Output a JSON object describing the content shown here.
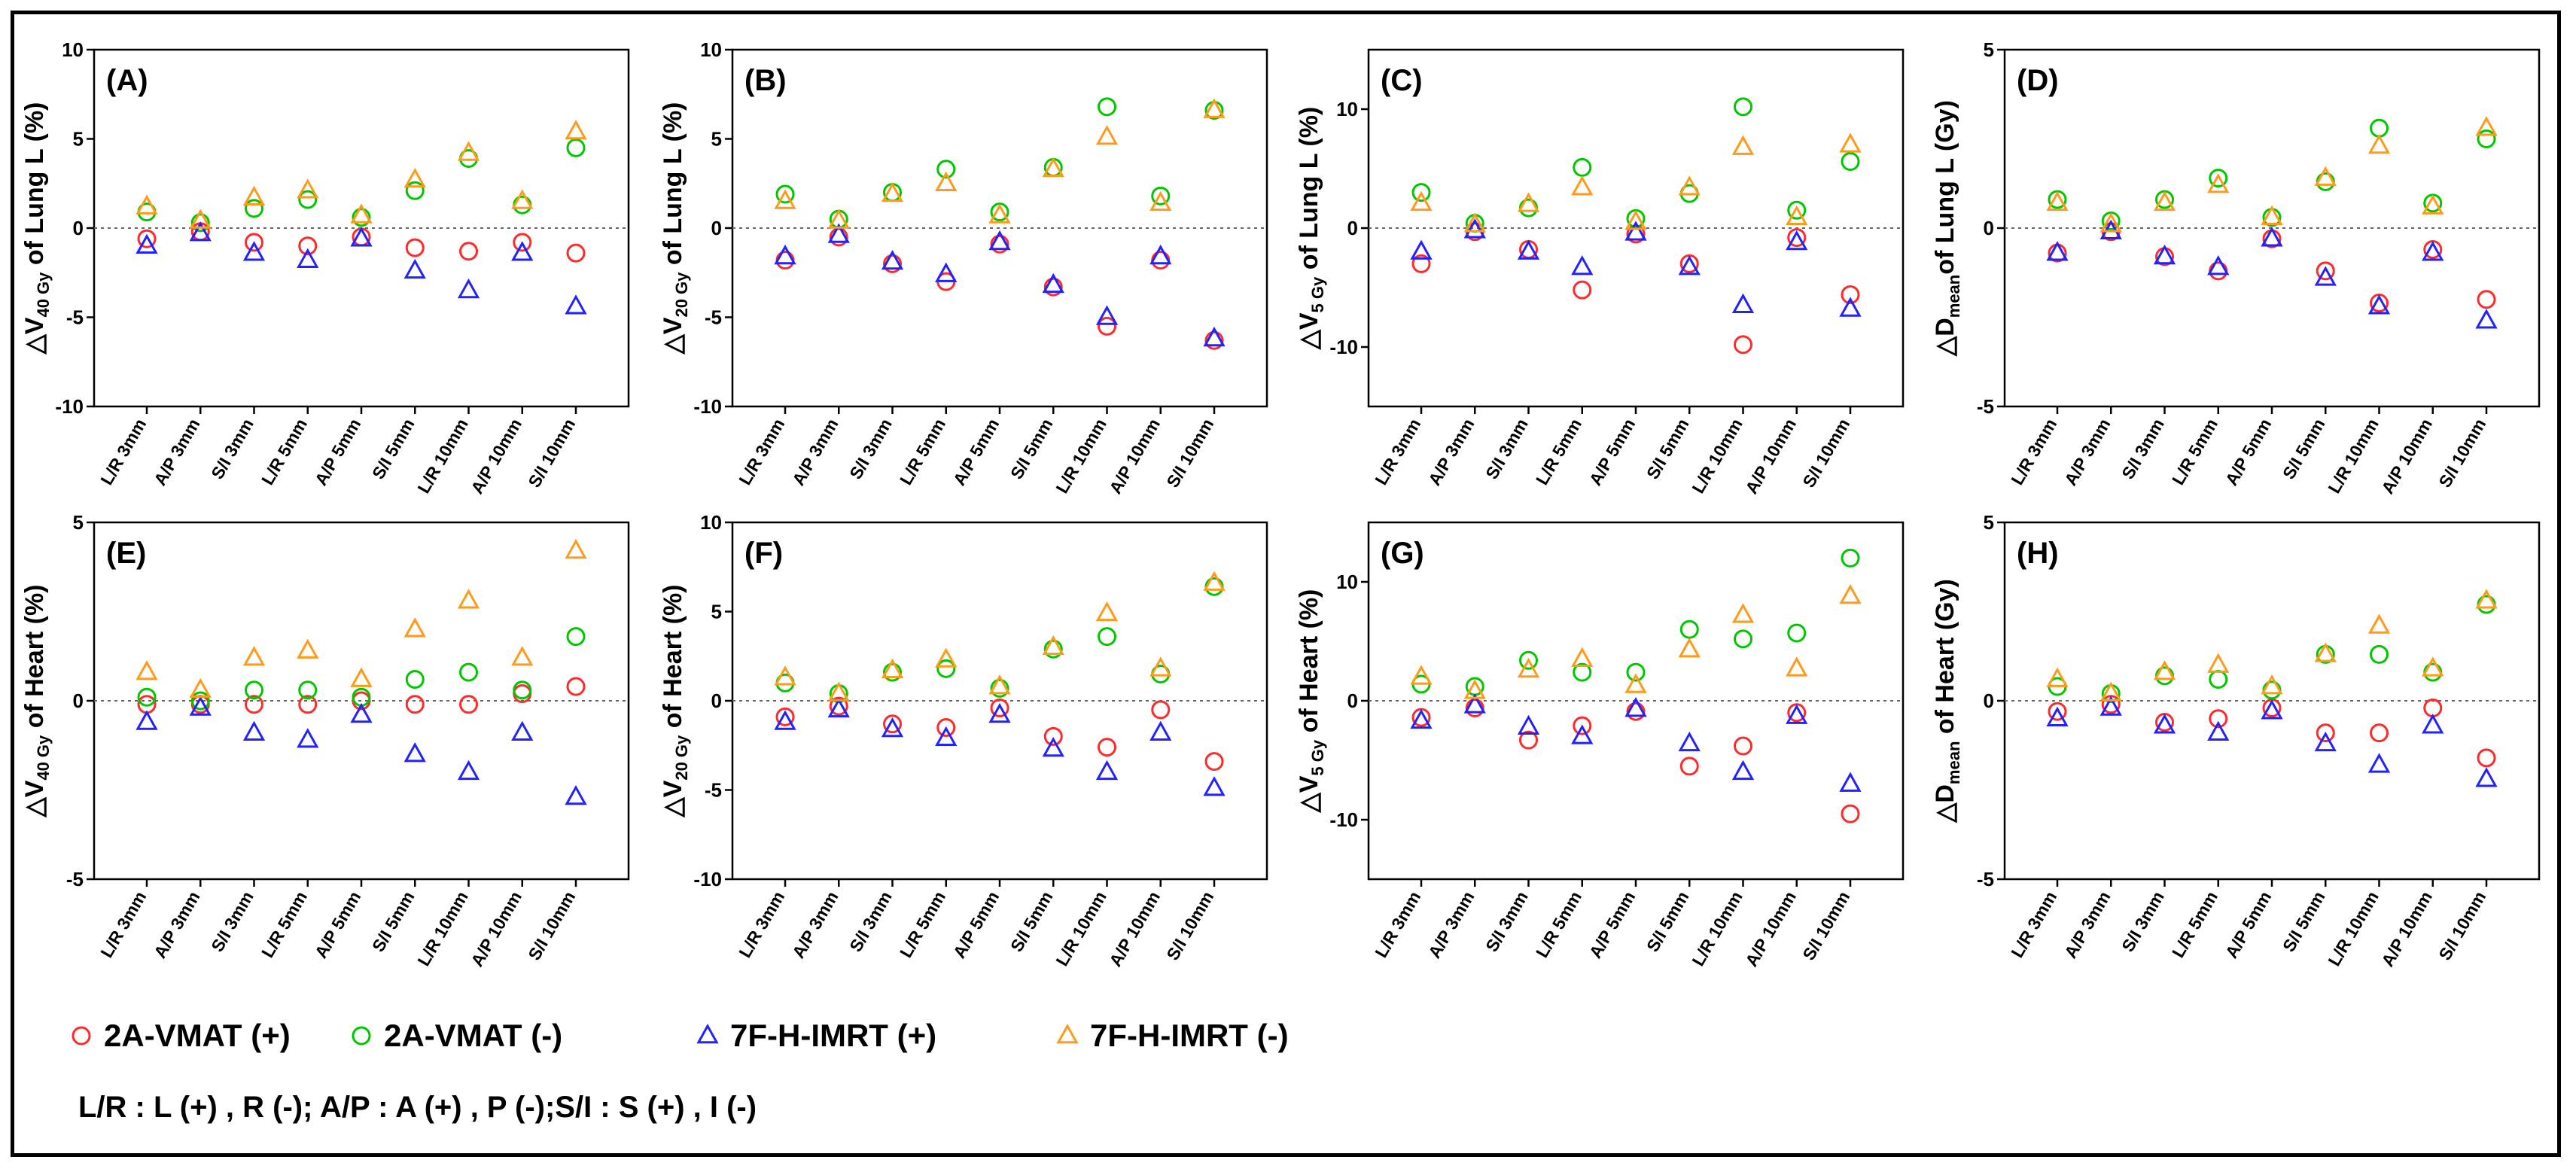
{
  "categories": [
    "L/R 3mm",
    "A/P 3mm",
    "S/I 3mm",
    "L/R 5mm",
    "A/P 5mm",
    "S/I 5mm",
    "L/R 10mm",
    "A/P 10mm",
    "S/I 10mm"
  ],
  "legend": [
    {
      "label": "2A-VMAT (+)",
      "marker": "circle",
      "color": "#ff2a2a"
    },
    {
      "label": "2A-VMAT (-)",
      "marker": "circle",
      "color": "#00c800"
    },
    {
      "label": "7F-H-IMRT (+)",
      "marker": "triangle",
      "color": "#2222ff"
    },
    {
      "label": "7F-H-IMRT (-)",
      "marker": "triangle",
      "color": "#ff9a1a"
    }
  ],
  "footnote": "L/R : L (+) , R (-); A/P : A (+) , P (-);S/I : S (+) , I (-)",
  "chart_data": [
    {
      "type": "scatter",
      "panel_label": "(A)",
      "ylabel": {
        "prefix": "△V",
        "sub": "40 Gy",
        "suffix": " of Lung L (%)"
      },
      "ylim": [
        -10,
        10
      ],
      "yticks": [
        -10,
        -5,
        0,
        5,
        10
      ],
      "zero_line": true,
      "categories": [
        "L/R 3mm",
        "A/P 3mm",
        "S/I 3mm",
        "L/R 5mm",
        "A/P 5mm",
        "S/I 5mm",
        "L/R 10mm",
        "A/P 10mm",
        "S/I 10mm"
      ],
      "series": [
        {
          "name": "2A-VMAT (+)",
          "values": [
            -0.6,
            -0.2,
            -0.8,
            -1.0,
            -0.5,
            -1.1,
            -1.3,
            -0.8,
            -1.4
          ]
        },
        {
          "name": "2A-VMAT (-)",
          "values": [
            0.9,
            0.3,
            1.1,
            1.6,
            0.6,
            2.1,
            3.9,
            1.3,
            4.5
          ]
        },
        {
          "name": "7F-H-IMRT (+)",
          "values": [
            -1.0,
            -0.3,
            -1.4,
            -1.8,
            -0.6,
            -2.4,
            -3.5,
            -1.4,
            -4.4
          ]
        },
        {
          "name": "7F-H-IMRT (-)",
          "values": [
            1.2,
            0.4,
            1.7,
            2.1,
            0.7,
            2.7,
            4.2,
            1.5,
            5.4
          ]
        }
      ]
    },
    {
      "type": "scatter",
      "panel_label": "(B)",
      "ylabel": {
        "prefix": "△V",
        "sub": "20 Gy",
        "suffix": " of Lung L (%)"
      },
      "ylim": [
        -10,
        10
      ],
      "yticks": [
        -10,
        -5,
        0,
        5,
        10
      ],
      "zero_line": true,
      "categories": [
        "L/R 3mm",
        "A/P 3mm",
        "S/I 3mm",
        "L/R 5mm",
        "A/P 5mm",
        "S/I 5mm",
        "L/R 10mm",
        "A/P 10mm",
        "S/I 10mm"
      ],
      "series": [
        {
          "name": "2A-VMAT (+)",
          "values": [
            -1.8,
            -0.5,
            -2.0,
            -3.0,
            -0.9,
            -3.3,
            -5.5,
            -1.8,
            -6.3
          ]
        },
        {
          "name": "2A-VMAT (-)",
          "values": [
            1.9,
            0.5,
            2.0,
            3.3,
            0.9,
            3.4,
            6.8,
            1.8,
            6.6
          ]
        },
        {
          "name": "7F-H-IMRT (+)",
          "values": [
            -1.6,
            -0.4,
            -1.9,
            -2.6,
            -0.8,
            -3.2,
            -5.0,
            -1.6,
            -6.2
          ]
        },
        {
          "name": "7F-H-IMRT (-)",
          "values": [
            1.5,
            0.4,
            1.9,
            2.5,
            0.7,
            3.3,
            5.1,
            1.4,
            6.6
          ]
        }
      ]
    },
    {
      "type": "scatter",
      "panel_label": "(C)",
      "ylabel": {
        "prefix": "△V",
        "sub": "5 Gy",
        "suffix": " of Lung L (%)"
      },
      "ylim": [
        -15,
        15
      ],
      "yticks": [
        -10,
        0,
        10
      ],
      "zero_line": true,
      "categories": [
        "L/R 3mm",
        "A/P 3mm",
        "S/I 3mm",
        "L/R 5mm",
        "A/P 5mm",
        "S/I 5mm",
        "L/R 10mm",
        "A/P 10mm",
        "S/I 10mm"
      ],
      "series": [
        {
          "name": "2A-VMAT (+)",
          "values": [
            -3.0,
            -0.3,
            -1.8,
            -5.2,
            -0.5,
            -3.0,
            -9.8,
            -0.8,
            -5.6
          ]
        },
        {
          "name": "2A-VMAT (-)",
          "values": [
            3.0,
            0.4,
            1.7,
            5.1,
            0.8,
            2.9,
            10.2,
            1.5,
            5.6
          ]
        },
        {
          "name": "7F-H-IMRT (+)",
          "values": [
            -2.0,
            -0.2,
            -2.0,
            -3.3,
            -0.4,
            -3.3,
            -6.5,
            -1.2,
            -6.8
          ]
        },
        {
          "name": "7F-H-IMRT (-)",
          "values": [
            2.1,
            0.3,
            2.0,
            3.4,
            0.5,
            3.4,
            6.8,
            0.9,
            7.0
          ]
        }
      ]
    },
    {
      "type": "scatter",
      "panel_label": "(D)",
      "ylabel": {
        "prefix": "△D",
        "sub": "mean",
        "suffix": "of Lung L (Gy)"
      },
      "ylim": [
        -5,
        5
      ],
      "yticks": [
        -5,
        0,
        5
      ],
      "zero_line": true,
      "categories": [
        "L/R 3mm",
        "A/P 3mm",
        "S/I 3mm",
        "L/R 5mm",
        "A/P 5mm",
        "S/I 5mm",
        "L/R 10mm",
        "A/P 10mm",
        "S/I 10mm"
      ],
      "series": [
        {
          "name": "2A-VMAT (+)",
          "values": [
            -0.7,
            -0.1,
            -0.8,
            -1.2,
            -0.3,
            -1.2,
            -2.1,
            -0.6,
            -2.0
          ]
        },
        {
          "name": "2A-VMAT (-)",
          "values": [
            0.8,
            0.2,
            0.8,
            1.4,
            0.3,
            1.3,
            2.8,
            0.7,
            2.5
          ]
        },
        {
          "name": "7F-H-IMRT (+)",
          "values": [
            -0.7,
            -0.1,
            -0.8,
            -1.1,
            -0.3,
            -1.4,
            -2.2,
            -0.7,
            -2.6
          ]
        },
        {
          "name": "7F-H-IMRT (-)",
          "values": [
            0.7,
            0.1,
            0.7,
            1.2,
            0.3,
            1.4,
            2.3,
            0.6,
            2.8
          ]
        }
      ]
    },
    {
      "type": "scatter",
      "panel_label": "(E)",
      "ylabel": {
        "prefix": "△V",
        "sub": "40 Gy",
        "suffix": " of Heart (%)"
      },
      "ylim": [
        -5,
        5
      ],
      "yticks": [
        -5,
        0,
        5
      ],
      "zero_line": true,
      "categories": [
        "L/R 3mm",
        "A/P 3mm",
        "S/I 3mm",
        "L/R 5mm",
        "A/P 5mm",
        "S/I 5mm",
        "L/R 10mm",
        "A/P 10mm",
        "S/I 10mm"
      ],
      "series": [
        {
          "name": "2A-VMAT (+)",
          "values": [
            -0.1,
            -0.1,
            -0.1,
            -0.1,
            0.0,
            -0.1,
            -0.1,
            0.2,
            0.4
          ]
        },
        {
          "name": "2A-VMAT (-)",
          "values": [
            0.1,
            0.0,
            0.3,
            0.3,
            0.1,
            0.6,
            0.8,
            0.3,
            1.8
          ]
        },
        {
          "name": "7F-H-IMRT (+)",
          "values": [
            -0.6,
            -0.2,
            -0.9,
            -1.1,
            -0.4,
            -1.5,
            -2.0,
            -0.9,
            -2.7
          ]
        },
        {
          "name": "7F-H-IMRT (-)",
          "values": [
            0.8,
            0.3,
            1.2,
            1.4,
            0.6,
            2.0,
            2.8,
            1.2,
            4.2
          ]
        }
      ]
    },
    {
      "type": "scatter",
      "panel_label": "(F)",
      "ylabel": {
        "prefix": "△V",
        "sub": "20 Gy",
        "suffix": " of Heart (%)"
      },
      "ylim": [
        -10,
        10
      ],
      "yticks": [
        -10,
        -5,
        0,
        5,
        10
      ],
      "zero_line": true,
      "categories": [
        "L/R 3mm",
        "A/P 3mm",
        "S/I 3mm",
        "L/R 5mm",
        "A/P 5mm",
        "S/I 5mm",
        "L/R 10mm",
        "A/P 10mm",
        "S/I 10mm"
      ],
      "series": [
        {
          "name": "2A-VMAT (+)",
          "values": [
            -0.9,
            -0.3,
            -1.3,
            -1.5,
            -0.4,
            -2.0,
            -2.6,
            -0.5,
            -3.4
          ]
        },
        {
          "name": "2A-VMAT (-)",
          "values": [
            1.0,
            0.4,
            1.6,
            1.8,
            0.7,
            2.9,
            3.6,
            1.5,
            6.4
          ]
        },
        {
          "name": "7F-H-IMRT (+)",
          "values": [
            -1.2,
            -0.5,
            -1.6,
            -2.1,
            -0.8,
            -2.7,
            -4.0,
            -1.8,
            -4.9
          ]
        },
        {
          "name": "7F-H-IMRT (-)",
          "values": [
            1.3,
            0.4,
            1.7,
            2.3,
            0.8,
            3.0,
            4.9,
            1.8,
            6.6
          ]
        }
      ]
    },
    {
      "type": "scatter",
      "panel_label": "(G)",
      "ylabel": {
        "prefix": "△V",
        "sub": "5 Gy",
        "suffix": " of Heart (%)"
      },
      "ylim": [
        -15,
        15
      ],
      "yticks": [
        -10,
        0,
        10
      ],
      "zero_line": true,
      "categories": [
        "L/R 3mm",
        "A/P 3mm",
        "S/I 3mm",
        "L/R 5mm",
        "A/P 5mm",
        "S/I 5mm",
        "L/R 10mm",
        "A/P 10mm",
        "S/I 10mm"
      ],
      "series": [
        {
          "name": "2A-VMAT (+)",
          "values": [
            -1.4,
            -0.6,
            -3.3,
            -2.1,
            -0.9,
            -5.5,
            -3.8,
            -1.0,
            -9.5
          ]
        },
        {
          "name": "2A-VMAT (-)",
          "values": [
            1.4,
            1.2,
            3.4,
            2.4,
            2.4,
            6.0,
            5.2,
            5.7,
            12.0
          ]
        },
        {
          "name": "7F-H-IMRT (+)",
          "values": [
            -1.7,
            -0.4,
            -2.2,
            -3.0,
            -0.7,
            -3.6,
            -6.0,
            -1.3,
            -7.0
          ]
        },
        {
          "name": "7F-H-IMRT (-)",
          "values": [
            2.0,
            0.8,
            2.6,
            3.5,
            1.3,
            4.3,
            7.2,
            2.7,
            8.8
          ]
        }
      ]
    },
    {
      "type": "scatter",
      "panel_label": "(H)",
      "ylabel": {
        "prefix": "△D",
        "sub": "mean",
        "suffix": " of Heart (Gy)"
      },
      "ylim": [
        -5,
        5
      ],
      "yticks": [
        -5,
        0,
        5
      ],
      "zero_line": true,
      "categories": [
        "L/R 3mm",
        "A/P 3mm",
        "S/I 3mm",
        "L/R 5mm",
        "A/P 5mm",
        "S/I 5mm",
        "L/R 10mm",
        "A/P 10mm",
        "S/I 10mm"
      ],
      "series": [
        {
          "name": "2A-VMAT (+)",
          "values": [
            -0.3,
            -0.1,
            -0.6,
            -0.5,
            -0.2,
            -0.9,
            -0.9,
            -0.2,
            -1.6
          ]
        },
        {
          "name": "2A-VMAT (-)",
          "values": [
            0.4,
            0.2,
            0.7,
            0.6,
            0.3,
            1.3,
            1.3,
            0.8,
            2.7
          ]
        },
        {
          "name": "7F-H-IMRT (+)",
          "values": [
            -0.5,
            -0.2,
            -0.7,
            -0.9,
            -0.3,
            -1.2,
            -1.8,
            -0.7,
            -2.2
          ]
        },
        {
          "name": "7F-H-IMRT (-)",
          "values": [
            0.6,
            0.2,
            0.8,
            1.0,
            0.4,
            1.3,
            2.1,
            0.9,
            2.8
          ]
        }
      ]
    }
  ]
}
